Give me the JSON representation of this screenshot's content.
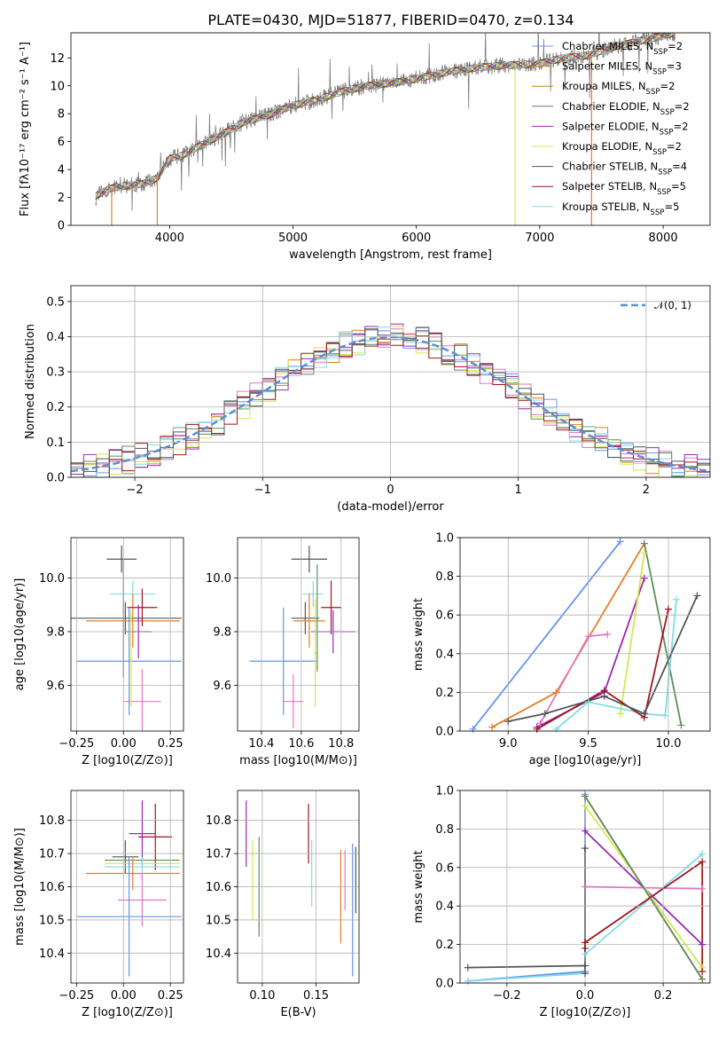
{
  "title": "PLATE=0430, MJD=51877, FIBERID=0470, z=0.134",
  "series_colors": [
    "#6495ED",
    "#E67E22",
    "#E377C2",
    "#9b27b0",
    "#d4e84d",
    "#5e8c5e",
    "#7fdde6",
    "#a0151c",
    "#555555"
  ],
  "chart_data": [
    {
      "id": "spectrum",
      "type": "line",
      "xlabel": "wavelength [Angstrom, rest frame]",
      "ylabel": "Flux [fλ10⁻¹⁷ erg cm⁻² s⁻¹ A⁻¹]",
      "xlim": [
        3200,
        8380
      ],
      "ylim": [
        0,
        13.8
      ],
      "xticks": [
        4000,
        5000,
        6000,
        7000,
        8000
      ],
      "yticks": [
        0,
        2,
        4,
        6,
        8,
        10,
        12
      ],
      "legend": [
        {
          "label": "Chabrier MILES, NSSP=2",
          "color": "#6495ED"
        },
        {
          "label": "Salpeter MILES, NSSP=3",
          "color": "#E67E22"
        },
        {
          "label": "Kroupa MILES, NSSP=2",
          "color": "#b8860b"
        },
        {
          "label": "Chabrier ELODIE, NSSP=2",
          "color": "#5e8c5e"
        },
        {
          "label": "Salpeter ELODIE, NSSP=2",
          "color": "#9b27b0"
        },
        {
          "label": "Kroupa ELODIE, NSSP=2",
          "color": "#d4e84d"
        },
        {
          "label": "Chabrier STELIB, NSSP=4",
          "color": "#555555"
        },
        {
          "label": "Salpeter STELIB, NSSP=5",
          "color": "#a0151c"
        },
        {
          "label": "Kroupa STELIB, NSSP=5",
          "color": "#7fdde6"
        }
      ],
      "continuum": {
        "x": [
          3400,
          3500,
          3600,
          3700,
          3800,
          3900,
          4000,
          4100,
          4200,
          4400,
          4600,
          4800,
          5000,
          5200,
          5400,
          5600,
          5800,
          6000,
          6200,
          6400,
          6600,
          6800,
          7000,
          7200,
          7400,
          7600,
          7800,
          8000,
          8100
        ],
        "y": [
          2.1,
          2.6,
          2.8,
          2.9,
          3.0,
          3.4,
          4.8,
          5.0,
          5.5,
          6.4,
          7.4,
          7.9,
          8.6,
          9.0,
          9.6,
          10.0,
          10.2,
          10.5,
          10.9,
          11.2,
          11.4,
          11.5,
          11.6,
          12.0,
          12.2,
          12.8,
          13.2,
          13.6,
          13.8
        ]
      }
    },
    {
      "id": "residuals",
      "type": "histogram",
      "xlabel": "(data-model)/error",
      "ylabel": "Normed distribution",
      "xlim": [
        -2.5,
        2.5
      ],
      "ylim": [
        0,
        0.545
      ],
      "xticks": [
        -2,
        -1,
        0,
        1,
        2
      ],
      "yticks": [
        0.0,
        0.1,
        0.2,
        0.3,
        0.4,
        0.5
      ],
      "legend": "𝒩(0, 1)",
      "gaussian": {
        "mu": 0,
        "sigma": 1
      }
    },
    {
      "id": "age_vs_Z",
      "type": "errorbar",
      "xlabel": "Z [log10(Z/Z⊙)]",
      "ylabel": "age  [log10(age/yr)]",
      "xlim": [
        -0.28,
        0.32
      ],
      "ylim": [
        9.43,
        10.15
      ],
      "xticks": [
        -0.25,
        0.0,
        0.25
      ],
      "yticks": [
        9.6,
        9.8,
        10.0
      ],
      "points": [
        {
          "x": -0.01,
          "y": 10.07,
          "xerr": 0.08,
          "yerr": 0.05,
          "color": "#555555"
        },
        {
          "x": 0.01,
          "y": 9.85,
          "xerr": 0.3,
          "yerr": 0.06,
          "color": "#555555"
        },
        {
          "x": 0.05,
          "y": 9.94,
          "xerr": 0.12,
          "yerr": 0.05,
          "color": "#7fdde6"
        },
        {
          "x": 0.05,
          "y": 9.84,
          "xerr": 0.25,
          "yerr": 0.1,
          "color": "#E67E22"
        },
        {
          "x": 0.1,
          "y": 9.89,
          "xerr": 0.08,
          "yerr": 0.07,
          "color": "#a0151c"
        },
        {
          "x": 0.08,
          "y": 9.8,
          "xerr": 0.07,
          "yerr": 0.1,
          "color": "#9b27b0"
        },
        {
          "x": 0.03,
          "y": 9.69,
          "xerr": 0.28,
          "yerr": 0.2,
          "color": "#6495ED"
        },
        {
          "x": 0.1,
          "y": 9.54,
          "xerr": 0.1,
          "yerr": 0.12,
          "color": "#E377C2"
        },
        {
          "x": 0.04,
          "y": 9.7,
          "xerr": 0.01,
          "yerr": 0.18,
          "color": "#d4e84d"
        },
        {
          "x": 0.0,
          "y": 9.85,
          "xerr": 0.01,
          "yerr": 0.22,
          "color": "#5e8c5e"
        }
      ]
    },
    {
      "id": "age_vs_mass",
      "type": "errorbar",
      "xlabel": "mass [log10(M/M⊙)]",
      "ylabel": "",
      "xlim": [
        10.28,
        10.89
      ],
      "ylim": [
        9.43,
        10.15
      ],
      "xticks": [
        10.4,
        10.6,
        10.8
      ],
      "yticks": [
        9.6,
        9.8,
        10.0
      ],
      "points": [
        {
          "x": 10.64,
          "y": 10.07,
          "xerr": 0.09,
          "yerr": 0.05,
          "color": "#555555"
        },
        {
          "x": 10.62,
          "y": 9.85,
          "xerr": 0.07,
          "yerr": 0.06,
          "color": "#555555"
        },
        {
          "x": 10.66,
          "y": 9.94,
          "xerr": 0.05,
          "yerr": 0.05,
          "color": "#7fdde6"
        },
        {
          "x": 10.64,
          "y": 9.84,
          "xerr": 0.08,
          "yerr": 0.1,
          "color": "#E67E22"
        },
        {
          "x": 10.75,
          "y": 9.89,
          "xerr": 0.05,
          "yerr": 0.1,
          "color": "#a0151c"
        },
        {
          "x": 10.76,
          "y": 9.8,
          "xerr": 0.11,
          "yerr": 0.08,
          "color": "#9b27b0"
        },
        {
          "x": 10.51,
          "y": 9.69,
          "xerr": 0.17,
          "yerr": 0.2,
          "color": "#6495ED"
        },
        {
          "x": 10.56,
          "y": 9.54,
          "xerr": 0.05,
          "yerr": 0.1,
          "color": "#E377C2"
        },
        {
          "x": 10.67,
          "y": 9.72,
          "xerr": 0.01,
          "yerr": 0.2,
          "color": "#d4e84d"
        },
        {
          "x": 10.68,
          "y": 9.85,
          "xerr": 0.01,
          "yerr": 0.2,
          "color": "#5e8c5e"
        }
      ]
    },
    {
      "id": "weight_vs_age",
      "type": "line",
      "xlabel": "age  [log10(age/yr)]",
      "ylabel": "mass weight",
      "xlim": [
        8.7,
        10.26
      ],
      "ylim": [
        0,
        1.0
      ],
      "xticks": [
        9.0,
        9.5,
        10.0
      ],
      "yticks": [
        0.0,
        0.2,
        0.4,
        0.6,
        0.8,
        1.0
      ],
      "series": [
        {
          "color": "#6495ED",
          "x": [
            8.78,
            9.7
          ],
          "y": [
            0.01,
            0.98
          ]
        },
        {
          "color": "#E67E22",
          "x": [
            8.9,
            9.3,
            9.85
          ],
          "y": [
            0.02,
            0.2,
            0.97
          ]
        },
        {
          "color": "#E377C2",
          "x": [
            9.2,
            9.5,
            9.62
          ],
          "y": [
            0.04,
            0.49,
            0.5
          ]
        },
        {
          "color": "#9b27b0",
          "x": [
            9.18,
            9.6,
            9.85
          ],
          "y": [
            0.02,
            0.2,
            0.79
          ]
        },
        {
          "color": "#d4e84d",
          "x": [
            9.7,
            9.85
          ],
          "y": [
            0.09,
            0.92
          ]
        },
        {
          "color": "#5e8c5e",
          "x": [
            9.85,
            10.08
          ],
          "y": [
            0.97,
            0.03
          ]
        },
        {
          "color": "#7fdde6",
          "x": [
            9.3,
            9.5,
            9.85,
            9.98,
            10.05
          ],
          "y": [
            0.01,
            0.15,
            0.09,
            0.08,
            0.68
          ]
        },
        {
          "color": "#a0151c",
          "x": [
            9.18,
            9.6,
            9.85,
            10.0
          ],
          "y": [
            0.01,
            0.21,
            0.07,
            0.63
          ]
        },
        {
          "color": "#555555",
          "x": [
            9.0,
            9.23,
            9.6,
            9.85,
            10.18
          ],
          "y": [
            0.05,
            0.09,
            0.18,
            0.09,
            0.7
          ]
        }
      ]
    },
    {
      "id": "mass_vs_Z",
      "type": "errorbar",
      "xlabel": "Z [log10(Z/Z⊙)]",
      "ylabel": "mass [log10(M/M⊙)]",
      "xlim": [
        -0.28,
        0.32
      ],
      "ylim": [
        10.31,
        10.89
      ],
      "xticks": [
        -0.25,
        0.0,
        0.25
      ],
      "yticks": [
        10.4,
        10.5,
        10.6,
        10.7,
        10.8
      ],
      "points": [
        {
          "x": 0.01,
          "y": 10.69,
          "xerr": 0.07,
          "yerr": 0.05,
          "color": "#555555"
        },
        {
          "x": 0.1,
          "y": 10.76,
          "xerr": 0.07,
          "yerr": 0.1,
          "color": "#9b27b0"
        },
        {
          "x": 0.17,
          "y": 10.75,
          "xerr": 0.09,
          "yerr": 0.1,
          "color": "#a0151c"
        },
        {
          "x": 0.1,
          "y": 10.68,
          "xerr": 0.2,
          "yerr": 0.01,
          "color": "#5e8c5e"
        },
        {
          "x": 0.1,
          "y": 10.67,
          "xerr": 0.2,
          "yerr": 0.01,
          "color": "#d4e84d"
        },
        {
          "x": 0.1,
          "y": 10.66,
          "xerr": 0.2,
          "yerr": 0.03,
          "color": "#7fdde6"
        },
        {
          "x": 0.05,
          "y": 10.64,
          "xerr": 0.25,
          "yerr": 0.05,
          "color": "#E67E22"
        },
        {
          "x": 0.1,
          "y": 10.56,
          "xerr": 0.13,
          "yerr": 0.08,
          "color": "#E377C2"
        },
        {
          "x": 0.03,
          "y": 10.51,
          "xerr": 0.28,
          "yerr": 0.18,
          "color": "#6495ED"
        }
      ]
    },
    {
      "id": "mass_vs_EBV",
      "type": "errorbar",
      "xlabel": "E(B-V)",
      "ylabel": "",
      "xlim": [
        0.077,
        0.19
      ],
      "ylim": [
        10.31,
        10.89
      ],
      "xticks": [
        0.1,
        0.15
      ],
      "yticks": [
        10.4,
        10.5,
        10.6,
        10.7,
        10.8
      ],
      "points": [
        {
          "x": 0.085,
          "y": 10.76,
          "xerr": 0.0,
          "yerr": 0.1,
          "color": "#9b27b0"
        },
        {
          "x": 0.091,
          "y": 10.62,
          "xerr": 0.0,
          "yerr": 0.12,
          "color": "#d4e84d"
        },
        {
          "x": 0.097,
          "y": 10.6,
          "xerr": 0.0,
          "yerr": 0.15,
          "color": "#5e8c5e"
        },
        {
          "x": 0.143,
          "y": 10.76,
          "xerr": 0.0,
          "yerr": 0.09,
          "color": "#a0151c"
        },
        {
          "x": 0.146,
          "y": 10.64,
          "xerr": 0.0,
          "yerr": 0.1,
          "color": "#7fdde6"
        },
        {
          "x": 0.173,
          "y": 10.57,
          "xerr": 0.0,
          "yerr": 0.14,
          "color": "#E67E22"
        },
        {
          "x": 0.177,
          "y": 10.62,
          "xerr": 0.0,
          "yerr": 0.09,
          "color": "#E377C2"
        },
        {
          "x": 0.184,
          "y": 10.53,
          "xerr": 0.0,
          "yerr": 0.2,
          "color": "#6495ED"
        },
        {
          "x": 0.187,
          "y": 10.62,
          "xerr": 0.0,
          "yerr": 0.1,
          "color": "#555555"
        }
      ]
    },
    {
      "id": "weight_vs_Z",
      "type": "line",
      "xlabel": "Z [log10(Z/Z⊙)]",
      "ylabel": "mass weight",
      "xlim": [
        -0.32,
        0.32
      ],
      "ylim": [
        0,
        1.0
      ],
      "xticks": [
        -0.2,
        0.0,
        0.2
      ],
      "yticks": [
        0.0,
        0.2,
        0.4,
        0.6,
        0.8,
        1.0
      ],
      "series": [
        {
          "color": "#6495ED",
          "x": [
            -0.3,
            0.0,
            0.0
          ],
          "y": [
            0.01,
            0.06,
            0.98
          ]
        },
        {
          "color": "#E67E22",
          "x": [
            0.0,
            0.3
          ],
          "y": [
            0.97,
            0.02
          ]
        },
        {
          "color": "#E377C2",
          "x": [
            0.0,
            0.3
          ],
          "y": [
            0.5,
            0.49
          ]
        },
        {
          "color": "#9b27b0",
          "x": [
            0.0,
            0.3
          ],
          "y": [
            0.79,
            0.2
          ]
        },
        {
          "color": "#d4e84d",
          "x": [
            0.0,
            0.3
          ],
          "y": [
            0.92,
            0.08
          ]
        },
        {
          "color": "#5e8c5e",
          "x": [
            0.0,
            0.3
          ],
          "y": [
            0.97,
            0.02
          ]
        },
        {
          "color": "#7fdde6",
          "x": [
            -0.3,
            0.0,
            0.0,
            0.3
          ],
          "y": [
            0.01,
            0.05,
            0.15,
            0.67
          ]
        },
        {
          "color": "#a0151c",
          "x": [
            0.0,
            0.0,
            0.3,
            0.3
          ],
          "y": [
            0.18,
            0.21,
            0.63,
            0.06
          ]
        },
        {
          "color": "#555555",
          "x": [
            -0.3,
            0.0,
            0.0,
            0.0
          ],
          "y": [
            0.08,
            0.09,
            0.05,
            0.7
          ]
        }
      ]
    }
  ]
}
